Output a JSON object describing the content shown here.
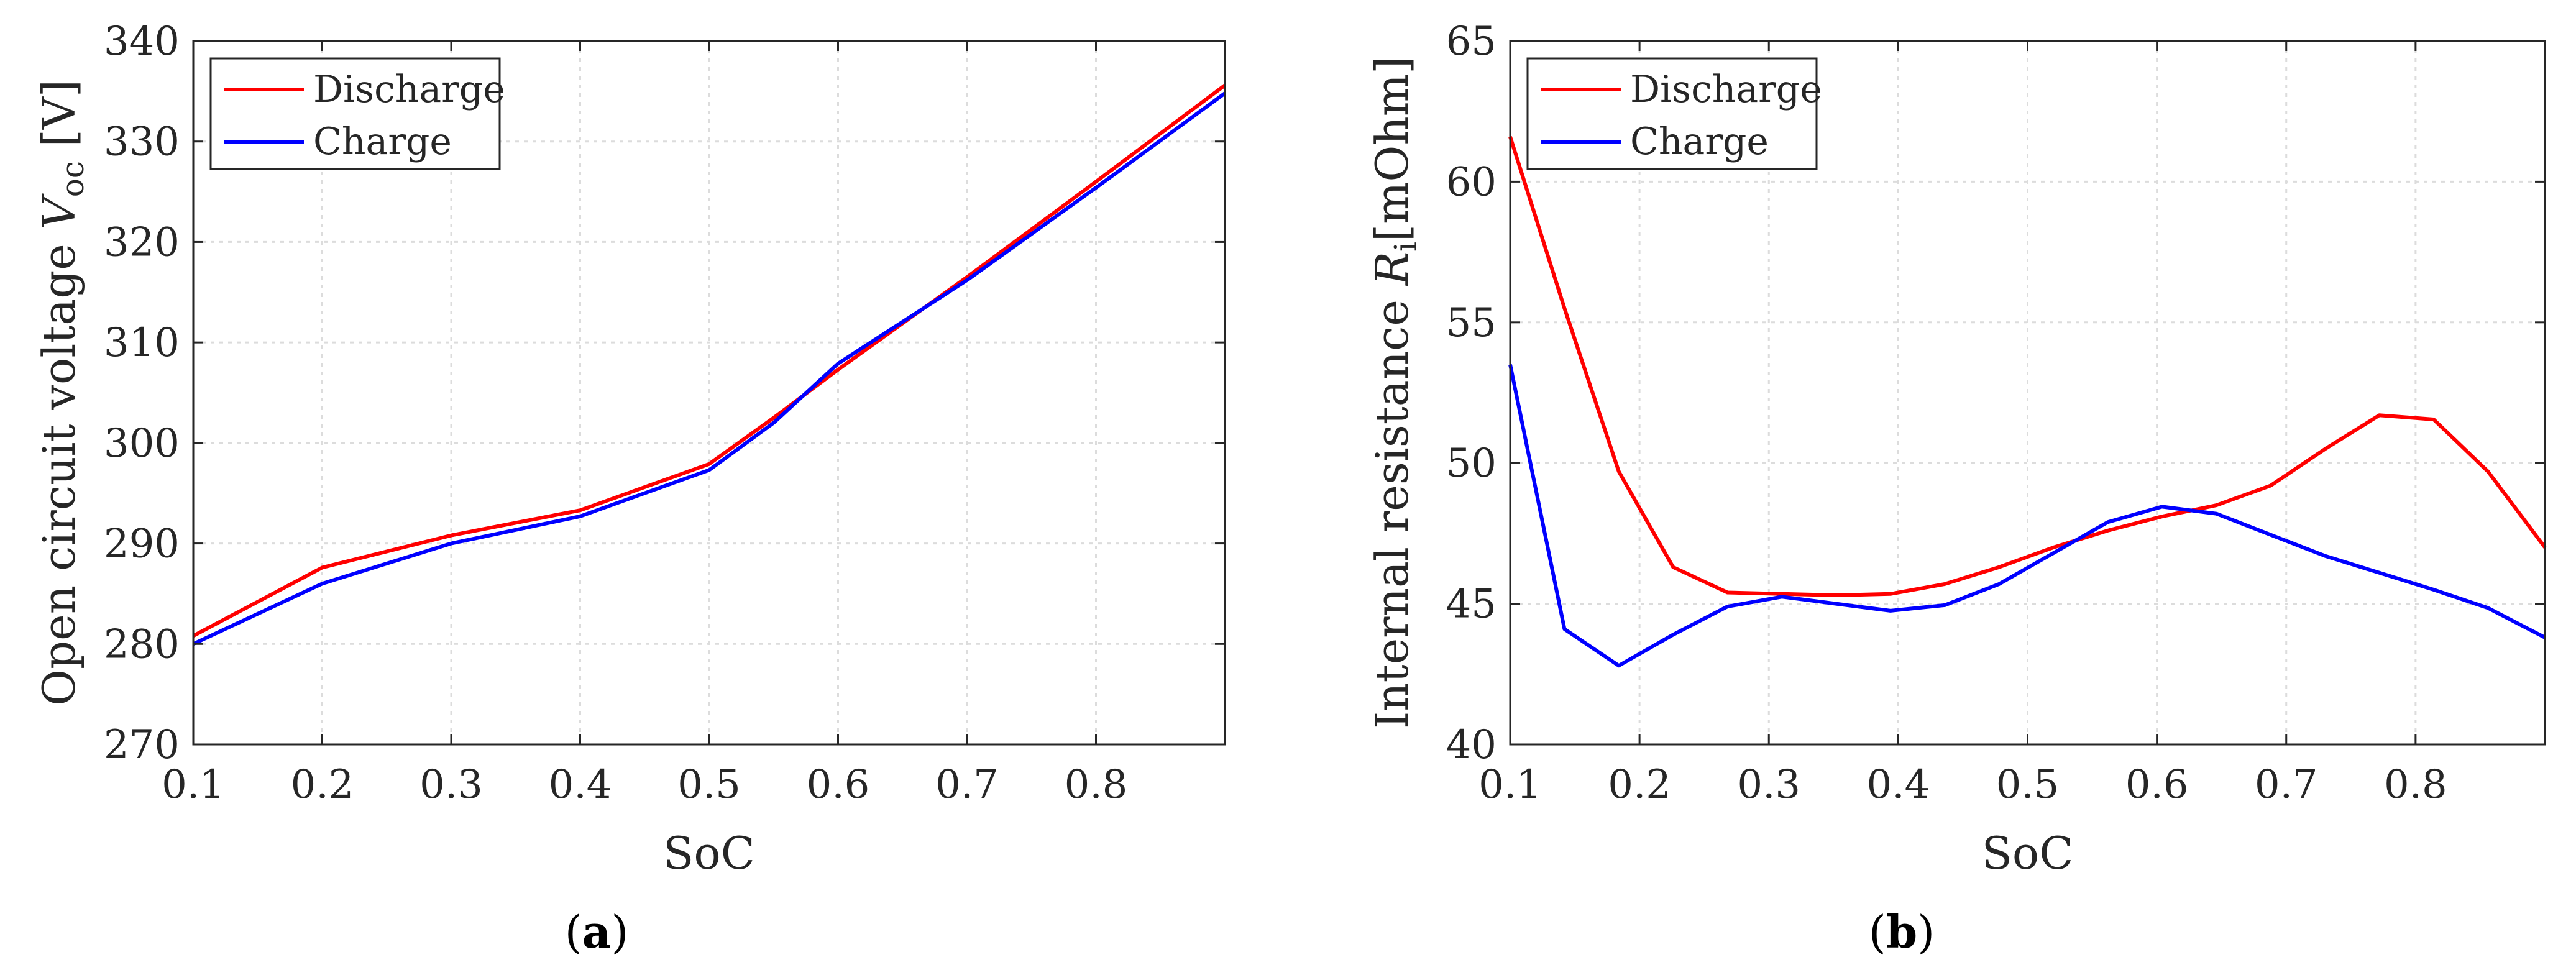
{
  "chart_data": [
    {
      "type": "line",
      "panel_label": "(a)",
      "xlabel": "SoC",
      "ylabel": "Open circuit voltage V_oc [V]",
      "ylabel_parts": {
        "main": "Open circuit voltage ",
        "var": "V",
        "sub": "oc",
        "unit": " [V]"
      },
      "xlim": [
        0.1,
        0.9
      ],
      "ylim": [
        270,
        340
      ],
      "xticks": [
        0.1,
        0.2,
        0.3,
        0.4,
        0.5,
        0.6,
        0.7,
        0.8
      ],
      "yticks": [
        270,
        280,
        290,
        300,
        310,
        320,
        330,
        340
      ],
      "grid": true,
      "legend_position": "top-left",
      "series": [
        {
          "name": "Discharge",
          "color": "#ff0000",
          "x": [
            0.1,
            0.2,
            0.3,
            0.4,
            0.5,
            0.55,
            0.6,
            0.7,
            0.8,
            0.9
          ],
          "y": [
            280.8,
            287.6,
            290.8,
            293.3,
            297.9,
            302.5,
            307.3,
            316.5,
            326.0,
            335.6
          ]
        },
        {
          "name": "Charge",
          "color": "#0000ff",
          "x": [
            0.1,
            0.2,
            0.3,
            0.4,
            0.5,
            0.55,
            0.6,
            0.7,
            0.8,
            0.9
          ],
          "y": [
            280.0,
            286.0,
            290.0,
            292.7,
            297.3,
            302.0,
            307.9,
            316.2,
            325.4,
            334.8
          ]
        }
      ]
    },
    {
      "type": "line",
      "panel_label": "(b)",
      "xlabel": "SoC",
      "ylabel": "Internal resistance R_i [mOhm]",
      "ylabel_parts": {
        "main": "Internal resistance ",
        "var": "R",
        "sub": "i",
        "unit": "[mOhm]"
      },
      "xlim": [
        0.1,
        0.9
      ],
      "ylim": [
        40,
        65
      ],
      "xticks": [
        0.1,
        0.2,
        0.3,
        0.4,
        0.5,
        0.6,
        0.7,
        0.8
      ],
      "yticks": [
        40,
        45,
        50,
        55,
        60,
        65
      ],
      "grid": true,
      "legend_position": "top-left",
      "series": [
        {
          "name": "Discharge",
          "color": "#ff0000",
          "x": [
            0.1,
            0.142,
            0.184,
            0.226,
            0.268,
            0.31,
            0.352,
            0.394,
            0.436,
            0.478,
            0.52,
            0.562,
            0.604,
            0.646,
            0.688,
            0.73,
            0.772,
            0.814,
            0.856,
            0.9
          ],
          "y": [
            61.6,
            55.5,
            49.7,
            46.3,
            45.4,
            45.35,
            45.3,
            45.35,
            45.7,
            46.3,
            47.0,
            47.6,
            48.1,
            48.5,
            49.2,
            50.5,
            51.7,
            51.55,
            49.7,
            47.0
          ]
        },
        {
          "name": "Charge",
          "color": "#0000ff",
          "x": [
            0.1,
            0.142,
            0.184,
            0.226,
            0.268,
            0.31,
            0.352,
            0.394,
            0.436,
            0.478,
            0.52,
            0.562,
            0.604,
            0.646,
            0.688,
            0.73,
            0.772,
            0.814,
            0.856,
            0.9
          ],
          "y": [
            53.5,
            44.1,
            42.8,
            43.9,
            44.9,
            45.25,
            45.0,
            44.75,
            44.95,
            45.7,
            46.8,
            47.9,
            48.45,
            48.2,
            47.45,
            46.7,
            46.1,
            45.5,
            44.85,
            43.8
          ]
        }
      ]
    }
  ]
}
